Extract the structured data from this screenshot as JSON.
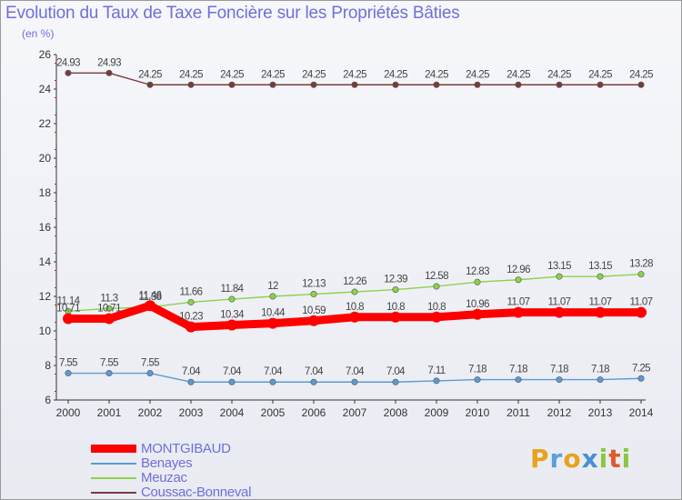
{
  "title": "Evolution du Taux de Taxe Foncière sur les Propriétés Bâties",
  "subtitle": "(en %)",
  "logo": {
    "letters": [
      "P",
      "r",
      "o",
      "x",
      "i",
      "t",
      "i"
    ]
  },
  "chart_data": {
    "type": "line",
    "title": "Evolution du Taux de Taxe Foncière sur les Propriétés Bâties",
    "ylabel": "(en %)",
    "xlabel": "",
    "ylim": [
      6,
      26
    ],
    "yticks": [
      6,
      8,
      10,
      12,
      14,
      16,
      18,
      20,
      22,
      24,
      26
    ],
    "grid": false,
    "x": [
      "2000",
      "2001",
      "2002",
      "2003",
      "2004",
      "2005",
      "2006",
      "2007",
      "2008",
      "2009",
      "2010",
      "2011",
      "2012",
      "2013",
      "2014"
    ],
    "series": [
      {
        "name": "Coussac-Bonneval",
        "color": "#7a3b3b",
        "values": [
          24.93,
          24.93,
          24.25,
          24.25,
          24.25,
          24.25,
          24.25,
          24.25,
          24.25,
          24.25,
          24.25,
          24.25,
          24.25,
          24.25,
          24.25
        ],
        "labels": [
          "24.93",
          "24.93",
          "24.25",
          "24.25",
          "24.25",
          "24.25",
          "24.25",
          "24.25",
          "24.25",
          "24.25",
          "24.25",
          "24.25",
          "24.25",
          "24.25",
          "24.25"
        ]
      },
      {
        "name": "Meuzac",
        "color": "#8cd24a",
        "values": [
          11.14,
          11.3,
          11.38,
          11.66,
          11.84,
          12,
          12.13,
          12.26,
          12.39,
          12.58,
          12.83,
          12.96,
          13.15,
          13.15,
          13.28
        ],
        "labels": [
          "11.14",
          "11.3",
          "11.38",
          "11.66",
          "11.84",
          "12",
          "12.13",
          "12.26",
          "12.39",
          "12.58",
          "12.83",
          "12.96",
          "13.15",
          "13.15",
          "13.28"
        ]
      },
      {
        "name": "Benayes",
        "color": "#5b9bd5",
        "values": [
          7.55,
          7.55,
          7.55,
          7.04,
          7.04,
          7.04,
          7.04,
          7.04,
          7.04,
          7.11,
          7.18,
          7.18,
          7.18,
          7.18,
          7.25
        ],
        "labels": [
          "7.55",
          "7.55",
          "7.55",
          "7.04",
          "7.04",
          "7.04",
          "7.04",
          "7.04",
          "7.04",
          "7.11",
          "7.18",
          "7.18",
          "7.18",
          "7.18",
          "7.25"
        ]
      },
      {
        "name": "MONTGIBAUD",
        "color": "#ff0000",
        "values": [
          10.71,
          10.71,
          11.46,
          10.23,
          10.34,
          10.44,
          10.59,
          10.8,
          10.8,
          10.8,
          10.96,
          11.07,
          11.07,
          11.07,
          11.07
        ],
        "labels": [
          "10.71",
          "10.71",
          "11.46",
          "10.23",
          "10.34",
          "10.44",
          "10.59",
          "10.8",
          "10.8",
          "10.8",
          "10.96",
          "11.07",
          "11.07",
          "11.07",
          "11.07"
        ]
      }
    ],
    "legend": [
      "MONTGIBAUD",
      "Benayes",
      "Meuzac",
      "Coussac-Bonneval"
    ],
    "legend_position": "bottom-left"
  }
}
